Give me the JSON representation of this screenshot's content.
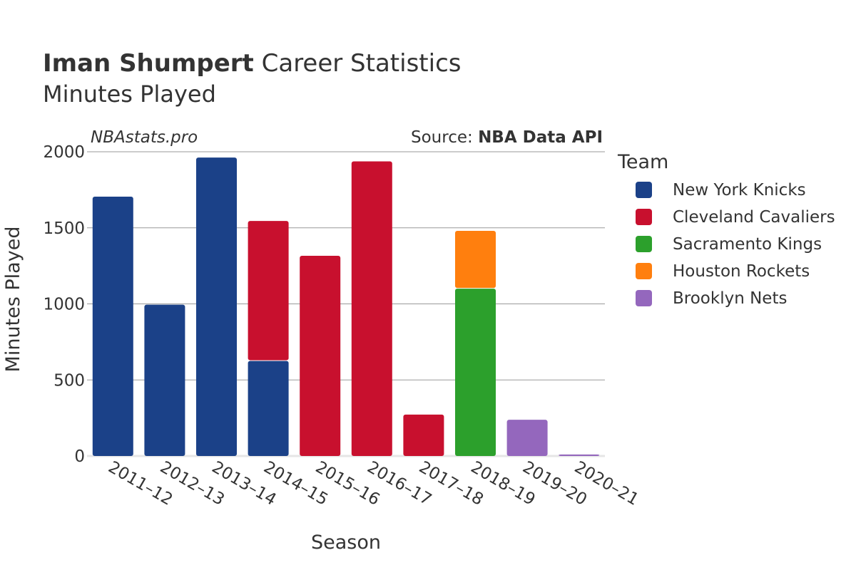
{
  "header": {
    "title_bold": "Iman Shumpert",
    "title_rest": " Career Statistics",
    "subtitle": "Minutes Played"
  },
  "watermark": "NBAstats.pro",
  "source": {
    "label": "Source: ",
    "value": "NBA Data API"
  },
  "legend": {
    "title": "Team"
  },
  "chart_data": {
    "type": "bar",
    "stacked": true,
    "xlabel": "Season",
    "ylabel": "Minutes Played",
    "ylim": [
      0,
      2000
    ],
    "yticks": [
      0,
      500,
      1000,
      1500,
      2000
    ],
    "categories": [
      "2011–12",
      "2012–13",
      "2013–14",
      "2014–15",
      "2015–16",
      "2016–17",
      "2017–18",
      "2018–19",
      "2019–20",
      "2020–21"
    ],
    "series": [
      {
        "name": "New York Knicks",
        "color": "#1b4188",
        "values": [
          1705,
          995,
          1962,
          625,
          0,
          0,
          0,
          0,
          0,
          0
        ]
      },
      {
        "name": "Cleveland Cavaliers",
        "color": "#c8102e",
        "values": [
          0,
          0,
          0,
          920,
          1316,
          1937,
          272,
          0,
          0,
          0
        ]
      },
      {
        "name": "Sacramento Kings",
        "color": "#2ca02c",
        "values": [
          0,
          0,
          0,
          0,
          0,
          0,
          0,
          1100,
          0,
          0
        ]
      },
      {
        "name": "Houston Rockets",
        "color": "#ff7f0e",
        "values": [
          0,
          0,
          0,
          0,
          0,
          0,
          0,
          380,
          0,
          0
        ]
      },
      {
        "name": "Brooklyn Nets",
        "color": "#9467bd",
        "values": [
          0,
          0,
          0,
          0,
          0,
          0,
          0,
          0,
          238,
          10
        ]
      }
    ],
    "grid": true,
    "legend_position": "right"
  }
}
